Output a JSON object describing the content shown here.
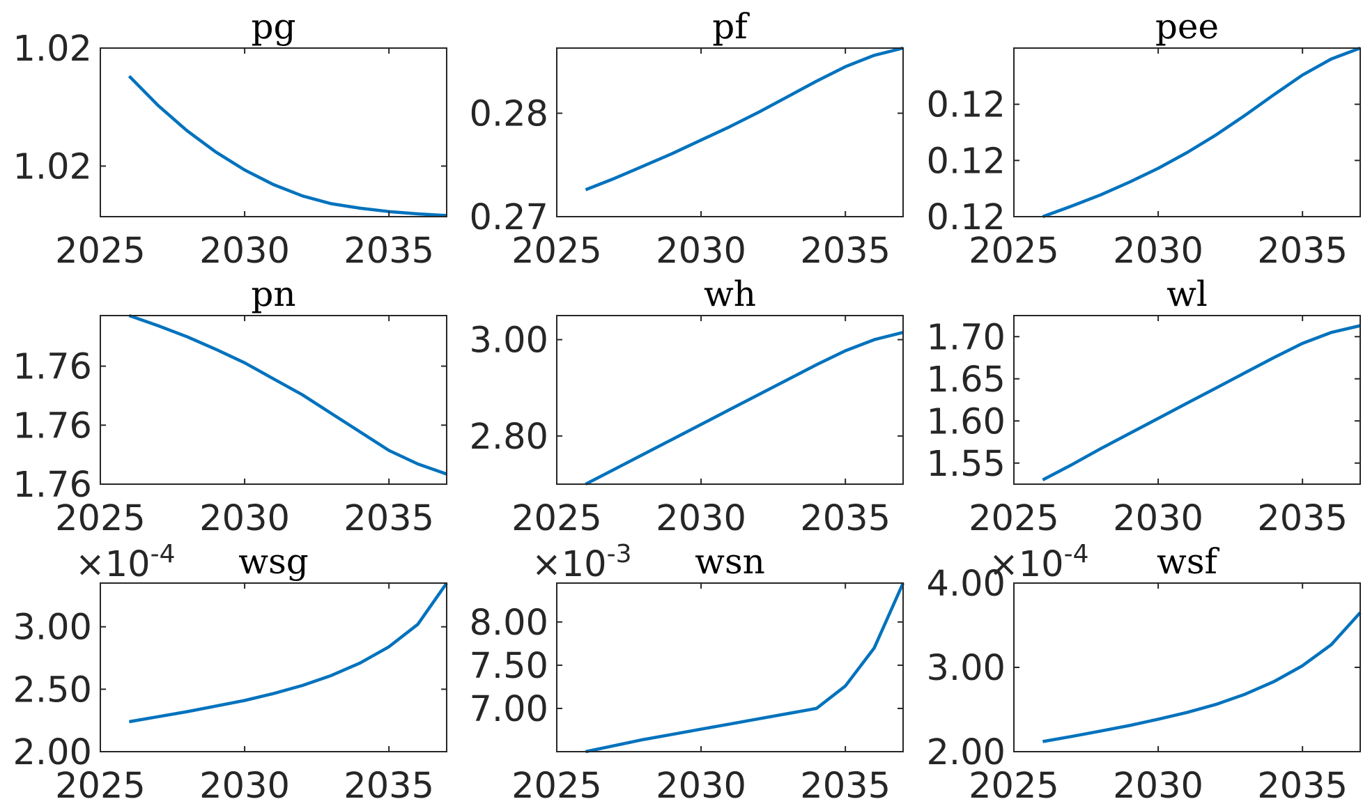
{
  "figure": {
    "line_color": "#0072BD",
    "axis_color": "#262626"
  },
  "chart_data": [
    {
      "type": "line",
      "title": "pg",
      "exponent": "",
      "x": [
        2026,
        2027,
        2028,
        2029,
        2030,
        2031,
        2032,
        2033,
        2034,
        2035,
        2036,
        2037
      ],
      "series": [
        {
          "values": [
            1.02455,
            1.02403,
            1.02358,
            1.0232,
            1.02288,
            1.02262,
            1.02242,
            1.02228,
            1.0222,
            1.02214,
            1.0221,
            1.02207
          ]
        }
      ],
      "xlim": [
        2025,
        2037
      ],
      "ylim": [
        1.02205,
        1.02505
      ],
      "xticks": [
        2025,
        2030,
        2035
      ],
      "xticklabels": [
        "2025",
        "2030",
        "2035"
      ],
      "yticks": [
        1.02295,
        1.02505
      ],
      "yticklabels": [
        "1.02",
        "1.02"
      ]
    },
    {
      "type": "line",
      "title": "pf",
      "exponent": "",
      "x": [
        2026,
        2027,
        2028,
        2029,
        2030,
        2031,
        2032,
        2033,
        2034,
        2035,
        2036,
        2037
      ],
      "series": [
        {
          "values": [
            0.2726,
            0.2737,
            0.2749,
            0.2761,
            0.2774,
            0.2787,
            0.2801,
            0.2816,
            0.2831,
            0.2845,
            0.2856,
            0.2863
          ]
        }
      ],
      "xlim": [
        2025,
        2037
      ],
      "ylim": [
        0.27,
        0.2863
      ],
      "xticks": [
        2025,
        2030,
        2035
      ],
      "xticklabels": [
        "2025",
        "2030",
        "2035"
      ],
      "yticks": [
        0.27,
        0.28
      ],
      "yticklabels": [
        "0.27",
        "0.28"
      ]
    },
    {
      "type": "line",
      "title": "pee",
      "exponent": "",
      "x": [
        2026,
        2027,
        2028,
        2029,
        2030,
        2031,
        2032,
        2033,
        2034,
        2035,
        2036,
        2037
      ],
      "series": [
        {
          "values": [
            0.115,
            0.11556,
            0.11616,
            0.11684,
            0.11758,
            0.11842,
            0.11936,
            0.1204,
            0.1215,
            0.12256,
            0.12342,
            0.124
          ]
        }
      ],
      "xlim": [
        2025,
        2037
      ],
      "ylim": [
        0.115,
        0.124
      ],
      "xticks": [
        2025,
        2030,
        2035
      ],
      "xticklabels": [
        "2025",
        "2030",
        "2035"
      ],
      "yticks": [
        0.115,
        0.118,
        0.121
      ],
      "yticklabels": [
        "0.12",
        "0.12",
        "0.12"
      ]
    },
    {
      "type": "line",
      "title": "pn",
      "exponent": "",
      "x": [
        2026,
        2027,
        2028,
        2029,
        2030,
        2031,
        2032,
        2033,
        2034,
        2035,
        2036,
        2037
      ],
      "series": [
        {
          "values": [
            1.762,
            1.76188,
            1.76175,
            1.7616,
            1.76144,
            1.76125,
            1.76106,
            1.76084,
            1.76062,
            1.7604,
            1.76024,
            1.76012
          ]
        }
      ],
      "xlim": [
        2025,
        2037
      ],
      "ylim": [
        1.76,
        1.762
      ],
      "xticks": [
        2025,
        2030,
        2035
      ],
      "xticklabels": [
        "2025",
        "2030",
        "2035"
      ],
      "yticks": [
        1.76,
        1.7607,
        1.7614
      ],
      "yticklabels": [
        "1.76",
        "1.76",
        "1.76"
      ]
    },
    {
      "type": "line",
      "title": "wh",
      "exponent": "",
      "x": [
        2026,
        2027,
        2028,
        2029,
        2030,
        2031,
        2032,
        2033,
        2034,
        2035,
        2036,
        2037
      ],
      "series": [
        {
          "values": [
            2.7,
            2.731,
            2.762,
            2.793,
            2.824,
            2.855,
            2.886,
            2.917,
            2.948,
            2.977,
            3.0,
            3.015
          ]
        }
      ],
      "xlim": [
        2025,
        2037
      ],
      "ylim": [
        2.7,
        3.05
      ],
      "xticks": [
        2025,
        2030,
        2035
      ],
      "xticklabels": [
        "2025",
        "2030",
        "2035"
      ],
      "yticks": [
        2.8,
        3.0
      ],
      "yticklabels": [
        "2.80",
        "3.00"
      ]
    },
    {
      "type": "line",
      "title": "wl",
      "exponent": "",
      "x": [
        2026,
        2027,
        2028,
        2029,
        2030,
        2031,
        2032,
        2033,
        2034,
        2035,
        2036,
        2037
      ],
      "series": [
        {
          "values": [
            1.53,
            1.548,
            1.567,
            1.585,
            1.603,
            1.621,
            1.639,
            1.657,
            1.675,
            1.692,
            1.705,
            1.713
          ]
        }
      ],
      "xlim": [
        2025,
        2037
      ],
      "ylim": [
        1.525,
        1.725
      ],
      "xticks": [
        2025,
        2030,
        2035
      ],
      "xticklabels": [
        "2025",
        "2030",
        "2035"
      ],
      "yticks": [
        1.55,
        1.6,
        1.65,
        1.7
      ],
      "yticklabels": [
        "1.55",
        "1.60",
        "1.65",
        "1.70"
      ]
    },
    {
      "type": "line",
      "title": "wsg",
      "exponent": "-4",
      "x": [
        2026,
        2027,
        2028,
        2029,
        2030,
        2031,
        2032,
        2033,
        2034,
        2035,
        2036,
        2037
      ],
      "series": [
        {
          "values": [
            2.24,
            2.28,
            2.32,
            2.365,
            2.41,
            2.465,
            2.53,
            2.61,
            2.71,
            2.84,
            3.02,
            3.35
          ]
        }
      ],
      "xlim": [
        2025,
        2037
      ],
      "ylim": [
        2.0,
        3.35
      ],
      "xticks": [
        2025,
        2030,
        2035
      ],
      "xticklabels": [
        "2025",
        "2030",
        "2035"
      ],
      "yticks": [
        2.0,
        2.5,
        3.0
      ],
      "yticklabels": [
        "2.00",
        "2.50",
        "3.00"
      ]
    },
    {
      "type": "line",
      "title": "wsn",
      "exponent": "-3",
      "x": [
        2026,
        2027,
        2028,
        2029,
        2030,
        2031,
        2032,
        2033,
        2034,
        2035,
        2036,
        2037
      ],
      "series": [
        {
          "values": [
            6.5,
            6.57,
            6.64,
            6.7,
            6.76,
            6.82,
            6.88,
            6.94,
            7.0,
            7.26,
            7.7,
            8.45
          ]
        }
      ],
      "xlim": [
        2025,
        2037
      ],
      "ylim": [
        6.5,
        8.45
      ],
      "xticks": [
        2025,
        2030,
        2035
      ],
      "xticklabels": [
        "2025",
        "2030",
        "2035"
      ],
      "yticks": [
        7.0,
        7.5,
        8.0
      ],
      "yticklabels": [
        "7.00",
        "7.50",
        "8.00"
      ]
    },
    {
      "type": "line",
      "title": "wsf",
      "exponent": "-4",
      "x": [
        2026,
        2027,
        2028,
        2029,
        2030,
        2031,
        2032,
        2033,
        2034,
        2035,
        2036,
        2037
      ],
      "series": [
        {
          "values": [
            2.12,
            2.18,
            2.245,
            2.31,
            2.385,
            2.465,
            2.56,
            2.68,
            2.83,
            3.02,
            3.27,
            3.65
          ]
        }
      ],
      "xlim": [
        2025,
        2037
      ],
      "ylim": [
        2.0,
        4.0
      ],
      "xticks": [
        2025,
        2030,
        2035
      ],
      "xticklabels": [
        "2025",
        "2030",
        "2035"
      ],
      "yticks": [
        2.0,
        3.0,
        4.0
      ],
      "yticklabels": [
        "2.00",
        "3.00",
        "4.00"
      ]
    }
  ]
}
